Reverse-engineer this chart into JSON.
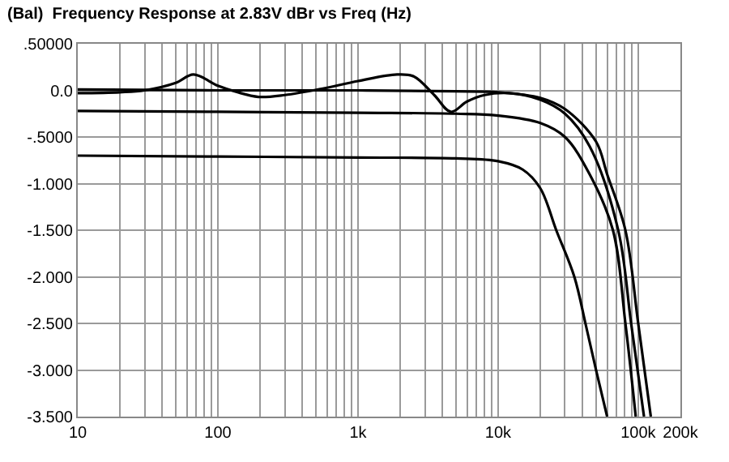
{
  "chart_data": {
    "type": "line",
    "title": "(Bal)  Frequency Response at 2.83V dBr vs Freq (Hz)",
    "log": "x",
    "grid": true,
    "marker": "none",
    "line_style": "solid",
    "xlim": [
      10,
      200000
    ],
    "xticks": [
      10,
      {
        "value": 20,
        "label": null
      },
      {
        "value": 30,
        "label": null
      },
      {
        "value": 40,
        "label": null
      },
      {
        "value": 50,
        "label": null
      },
      {
        "value": 60,
        "label": null
      },
      {
        "value": 70,
        "label": null
      },
      {
        "value": 80,
        "label": null
      },
      {
        "value": 90,
        "label": null
      },
      100,
      {
        "value": 200,
        "label": null
      },
      {
        "value": 300,
        "label": null
      },
      {
        "value": 400,
        "label": null
      },
      {
        "value": 500,
        "label": null
      },
      {
        "value": 600,
        "label": null
      },
      {
        "value": 700,
        "label": null
      },
      {
        "value": 800,
        "label": null
      },
      {
        "value": 900,
        "label": null
      },
      {
        "value": 1000,
        "label": "1k"
      },
      {
        "value": 2000,
        "label": null
      },
      {
        "value": 3000,
        "label": null
      },
      {
        "value": 4000,
        "label": null
      },
      {
        "value": 5000,
        "label": null
      },
      {
        "value": 6000,
        "label": null
      },
      {
        "value": 7000,
        "label": null
      },
      {
        "value": 8000,
        "label": null
      },
      {
        "value": 9000,
        "label": null
      },
      {
        "value": 10000,
        "label": "10k"
      },
      {
        "value": 20000,
        "label": null
      },
      {
        "value": 30000,
        "label": null
      },
      {
        "value": 40000,
        "label": null
      },
      {
        "value": 50000,
        "label": null
      },
      {
        "value": 60000,
        "label": null
      },
      {
        "value": 70000,
        "label": null
      },
      {
        "value": 80000,
        "label": null
      },
      {
        "value": 90000,
        "label": null
      },
      {
        "value": 100000,
        "label": "100k"
      },
      {
        "value": 200000,
        "label": "200k"
      }
    ],
    "ylim": [
      -3.5,
      0.5
    ],
    "yticks": [
      {
        "value": 0.5,
        "label": ".50000"
      },
      {
        "value": 0,
        "label": "0.0"
      },
      {
        "value": -0.5,
        "label": "-.5000"
      },
      {
        "value": -1,
        "label": "-1.000"
      },
      {
        "value": -1.5,
        "label": "-1.500"
      },
      {
        "value": -2,
        "label": "-2.000"
      },
      {
        "value": -2.5,
        "label": "-2.500"
      },
      {
        "value": -3,
        "label": "-3.000"
      },
      {
        "value": -3.5,
        "label": "-3.500"
      }
    ],
    "series": [
      {
        "color": "#000000",
        "x": [
          10,
          100,
          1000,
          5000,
          10000,
          20000,
          30000,
          50000,
          60000,
          81000,
          100000,
          123000
        ],
        "values": [
          0.01,
          0.0,
          0.0,
          -0.01,
          -0.02,
          -0.08,
          -0.2,
          -0.55,
          -0.9,
          -1.5,
          -2.5,
          -3.5
        ]
      },
      {
        "color": "#000000",
        "x": [
          10,
          20,
          30,
          50,
          67,
          100,
          138,
          195,
          300,
          560,
          1000,
          1900,
          2500,
          3500,
          4600,
          6000,
          8000,
          12000,
          20000,
          30000,
          45000,
          72000,
          89000,
          110000
        ],
        "values": [
          -0.03,
          -0.02,
          0.0,
          0.08,
          0.17,
          0.05,
          -0.02,
          -0.07,
          -0.05,
          0.02,
          0.1,
          0.17,
          0.15,
          -0.05,
          -0.23,
          -0.12,
          -0.05,
          -0.03,
          -0.1,
          -0.25,
          -0.6,
          -1.5,
          -2.5,
          -3.5
        ]
      },
      {
        "color": "#000000",
        "x": [
          10,
          100,
          1000,
          5000,
          10000,
          20000,
          30000,
          45000,
          66000,
          81000,
          96000
        ],
        "values": [
          -0.22,
          -0.23,
          -0.24,
          -0.25,
          -0.27,
          -0.35,
          -0.5,
          -0.9,
          -1.5,
          -2.5,
          -3.5
        ]
      },
      {
        "color": "#000000",
        "x": [
          10,
          100,
          1000,
          5000,
          10000,
          15000,
          20000,
          26000,
          35000,
          42000,
          50000,
          60000
        ],
        "values": [
          -0.7,
          -0.71,
          -0.72,
          -0.73,
          -0.76,
          -0.85,
          -1.05,
          -1.5,
          -2.0,
          -2.5,
          -3.0,
          -3.5
        ]
      }
    ]
  }
}
